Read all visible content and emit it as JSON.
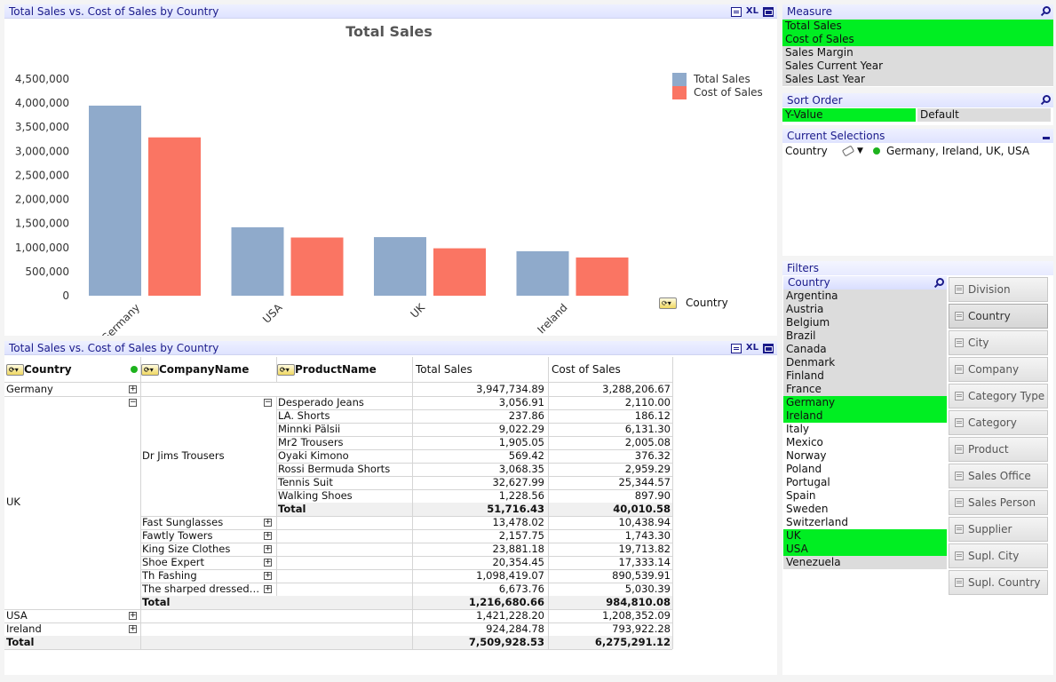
{
  "chart_panel": {
    "caption": "Total Sales vs. Cost of Sales by Country",
    "xl": "XL"
  },
  "chart_data": {
    "type": "bar",
    "title": "Total Sales",
    "categories": [
      "Germany",
      "USA",
      "UK",
      "Ireland"
    ],
    "series": [
      {
        "name": "Total Sales",
        "values": [
          3947734.89,
          1421228.2,
          1216680.66,
          924284.78
        ],
        "color": "#8faacb"
      },
      {
        "name": "Cost of Sales",
        "values": [
          3288206.67,
          1208352.09,
          984810.08,
          793922.28
        ],
        "color": "#fa7563"
      }
    ],
    "y_ticks": [
      "0",
      "500,000",
      "1,000,000",
      "1,500,000",
      "2,000,000",
      "2,500,000",
      "3,000,000",
      "3,500,000",
      "4,000,000",
      "4,500,000"
    ],
    "ylim": [
      0,
      4500000
    ],
    "xlabel": "Country",
    "legend": "top-right"
  },
  "table_panel": {
    "caption": "Total Sales vs. Cost of Sales by Country",
    "xl": "XL",
    "headers": {
      "country": "Country",
      "company": "CompanyName",
      "product": "ProductName",
      "total_sales": "Total Sales",
      "cost": "Cost of Sales"
    },
    "rows": {
      "germany": {
        "country": "Germany",
        "total": "3,947,734.89",
        "cost": "3,288,206.67"
      },
      "uk": {
        "country": "UK",
        "dr_jims": {
          "name": "Dr Jims Trousers",
          "products": [
            {
              "name": "Desperado Jeans",
              "total": "3,056.91",
              "cost": "2,110.00"
            },
            {
              "name": "LA. Shorts",
              "total": "237.86",
              "cost": "186.12"
            },
            {
              "name": "Minnki Pälsii",
              "total": "9,022.29",
              "cost": "6,131.30"
            },
            {
              "name": "Mr2 Trousers",
              "total": "1,905.05",
              "cost": "2,005.08"
            },
            {
              "name": "Oyaki Kimono",
              "total": "569.42",
              "cost": "376.32"
            },
            {
              "name": "Rossi Bermuda Shorts",
              "total": "3,068.35",
              "cost": "2,959.29"
            },
            {
              "name": "Tennis Suit",
              "total": "32,627.99",
              "cost": "25,344.57"
            },
            {
              "name": "Walking Shoes",
              "total": "1,228.56",
              "cost": "897.90"
            }
          ],
          "total_label": "Total",
          "total": "51,716.43",
          "cost": "40,010.58"
        },
        "companies": [
          {
            "name": "Fast Sunglasses",
            "total": "13,478.02",
            "cost": "10,438.94"
          },
          {
            "name": "Fawtly Towers",
            "total": "2,157.75",
            "cost": "1,743.30"
          },
          {
            "name": "King Size Clothes",
            "total": "23,881.18",
            "cost": "19,713.82"
          },
          {
            "name": "Shoe Expert",
            "total": "20,354.45",
            "cost": "17,333.14"
          },
          {
            "name": "Th Fashing",
            "total": "1,098,419.07",
            "cost": "890,539.91"
          },
          {
            "name": "The sharped dressed…",
            "total": "6,673.76",
            "cost": "5,030.39"
          }
        ],
        "total_label": "Total",
        "total": "1,216,680.66",
        "cost": "984,810.08"
      },
      "usa": {
        "country": "USA",
        "total": "1,421,228.20",
        "cost": "1,208,352.09"
      },
      "ireland": {
        "country": "Ireland",
        "total": "924,284.78",
        "cost": "793,922.28"
      },
      "grand": {
        "label": "Total",
        "total": "7,509,928.53",
        "cost": "6,275,291.12"
      }
    }
  },
  "measure": {
    "caption": "Measure",
    "items": [
      {
        "label": "Total Sales",
        "state": "sel"
      },
      {
        "label": "Cost of Sales",
        "state": "sel"
      },
      {
        "label": "Sales Margin",
        "state": "alt"
      },
      {
        "label": "Sales Current Year",
        "state": "alt"
      },
      {
        "label": "Sales Last Year",
        "state": "alt"
      }
    ]
  },
  "sort_order": {
    "caption": "Sort Order",
    "options": [
      "Y-Value",
      "Default"
    ]
  },
  "current_selections": {
    "caption": "Current Selections",
    "field": "Country",
    "values": "Germany, Ireland, UK, USA"
  },
  "filters": {
    "caption": "Filters",
    "list_caption": "Country",
    "countries": [
      {
        "label": "Argentina",
        "state": "alt"
      },
      {
        "label": "Austria",
        "state": "alt"
      },
      {
        "label": "Belgium",
        "state": "alt"
      },
      {
        "label": "Brazil",
        "state": "alt"
      },
      {
        "label": "Canada",
        "state": "alt"
      },
      {
        "label": "Denmark",
        "state": "alt"
      },
      {
        "label": "Finland",
        "state": "alt"
      },
      {
        "label": "France",
        "state": "alt"
      },
      {
        "label": "Germany",
        "state": "sel"
      },
      {
        "label": "Ireland",
        "state": "sel"
      },
      {
        "label": "Italy",
        "state": "wh"
      },
      {
        "label": "Mexico",
        "state": "wh"
      },
      {
        "label": "Norway",
        "state": "wh"
      },
      {
        "label": "Poland",
        "state": "wh"
      },
      {
        "label": "Portugal",
        "state": "wh"
      },
      {
        "label": "Spain",
        "state": "wh"
      },
      {
        "label": "Sweden",
        "state": "wh"
      },
      {
        "label": "Switzerland",
        "state": "wh"
      },
      {
        "label": "UK",
        "state": "sel"
      },
      {
        "label": "USA",
        "state": "sel"
      },
      {
        "label": "Venezuela",
        "state": "alt"
      }
    ],
    "buttons": [
      "Division",
      "Country",
      "City",
      "Company",
      "Category Type",
      "Category",
      "Product",
      "Sales Office",
      "Sales Person",
      "Supplier",
      "Supl. City",
      "Supl. Country"
    ],
    "active_button": "Country"
  }
}
